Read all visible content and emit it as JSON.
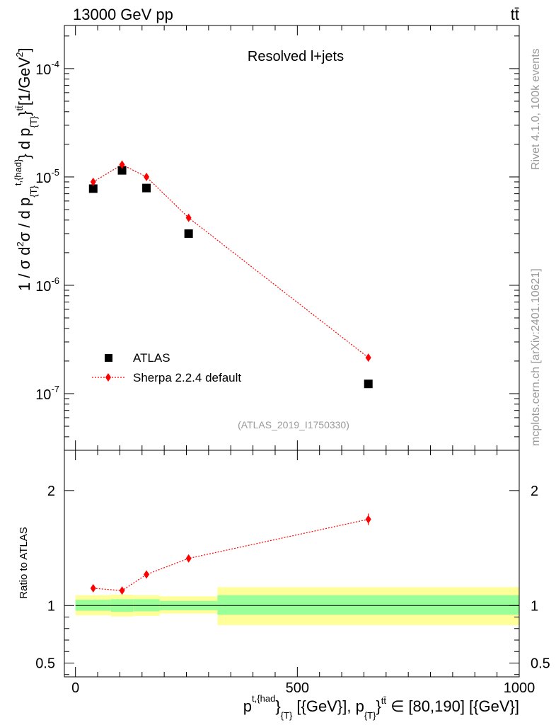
{
  "header": {
    "left_title": "13000 GeV pp",
    "right_title": "tt̄"
  },
  "side_labels": {
    "rivet": "Rivet 4.1.0,  100k events",
    "mcplots": "mcplots.cern.ch [arXiv:2401.10621]"
  },
  "colors": {
    "data_marker": "#000000",
    "mc_line": "#ff0000",
    "band_inner": "#99ff99",
    "band_outer": "#ffff99",
    "watermark_gray": "#999999"
  },
  "chart_data": [
    {
      "type": "scatter",
      "panel": "main",
      "title": "Resolved l+jets",
      "watermark": "(ATLAS_2019_I1750330)",
      "ylabel": "1 / σ d²σ / d p_{T}^{t,{had}} d p_{T}^{tt̄} [1/GeV²]",
      "yscale": "log",
      "xlim": [
        -25,
        1000
      ],
      "ylim": [
        3e-08,
        0.00025
      ],
      "y_tick_labels": [
        "10^-7",
        "10^-6",
        "10^-5",
        "10^-4"
      ],
      "legend": {
        "position": "lower-left",
        "entries": [
          "ATLAS",
          "Sherpa 2.2.4 default"
        ]
      },
      "series": [
        {
          "name": "ATLAS",
          "marker": "square",
          "x": [
            40,
            105,
            160,
            255,
            660
          ],
          "values": [
            7.8e-06,
            1.15e-05,
            7.9e-06,
            3e-06,
            1.23e-07
          ]
        },
        {
          "name": "Sherpa 2.2.4 default",
          "marker": "diamond",
          "line": "dotted",
          "x": [
            40,
            105,
            160,
            255,
            660
          ],
          "values": [
            9e-06,
            1.3e-05,
            1e-05,
            4.2e-06,
            2.15e-07
          ]
        }
      ]
    },
    {
      "type": "line",
      "panel": "ratio",
      "ylabel": "Ratio to ATLAS",
      "xlabel": "p_{T}^{t,{had}} [{GeV}], p_{T}^{tt̄} ∈ [80,190] [{GeV}]",
      "xlim": [
        -25,
        1000
      ],
      "ylim": [
        0.38,
        2.35
      ],
      "x_ticks": [
        0,
        500,
        1000
      ],
      "y_tick_labels": [
        "0.5",
        "1",
        "2"
      ],
      "reference_line": 1,
      "bands": {
        "edges": [
          0,
          80,
          130,
          190,
          320,
          1000
        ],
        "inner_lo": [
          0.955,
          0.945,
          0.95,
          0.96,
          0.92
        ],
        "inner_hi": [
          1.05,
          1.055,
          1.055,
          1.04,
          1.09
        ],
        "outer_lo": [
          0.915,
          0.905,
          0.91,
          0.93,
          0.83
        ],
        "outer_hi": [
          1.09,
          1.095,
          1.09,
          1.08,
          1.16
        ]
      },
      "series": [
        {
          "name": "Sherpa 2.2.4 default",
          "x": [
            40,
            105,
            160,
            255,
            660
          ],
          "values": [
            1.15,
            1.13,
            1.27,
            1.41,
            1.75
          ],
          "errors": [
            0.02,
            0.02,
            0.02,
            0.02,
            0.05
          ]
        }
      ]
    }
  ]
}
